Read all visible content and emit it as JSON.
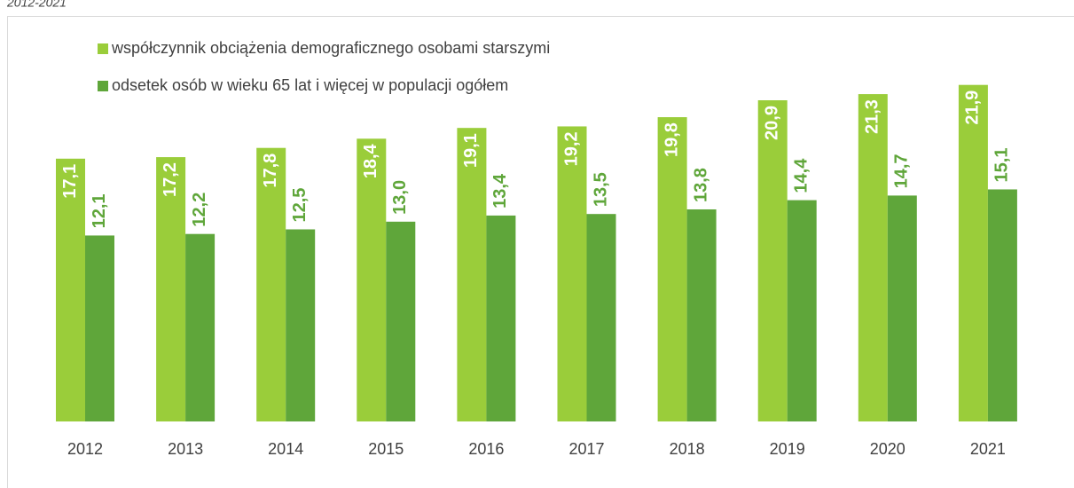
{
  "chart_data": {
    "type": "bar",
    "title": "2012-2021",
    "categories": [
      "2012",
      "2013",
      "2014",
      "2015",
      "2016",
      "2017",
      "2018",
      "2019",
      "2020",
      "2021"
    ],
    "series": [
      {
        "name": "współczynnik obciążenia demograficznego osobami starszymi",
        "color": "#9acd3a",
        "values": [
          17.1,
          17.2,
          17.8,
          18.4,
          19.1,
          19.2,
          19.8,
          20.9,
          21.3,
          21.9
        ],
        "value_labels": [
          "17,1",
          "17,2",
          "17,8",
          "18,4",
          "19,1",
          "19,2",
          "19,8",
          "20,9",
          "21,3",
          "21,9"
        ]
      },
      {
        "name": "odsetek osób w wieku 65 lat i więcej w populacji ogółem",
        "color": "#5fa63a",
        "values": [
          12.1,
          12.2,
          12.5,
          13.0,
          13.4,
          13.5,
          13.8,
          14.4,
          14.7,
          15.1
        ],
        "value_labels": [
          "12,1",
          "12,2",
          "12,5",
          "13,0",
          "13,4",
          "13,5",
          "13,8",
          "14,4",
          "14,7",
          "15,1"
        ]
      }
    ],
    "ylim": [
      0,
      25
    ]
  }
}
